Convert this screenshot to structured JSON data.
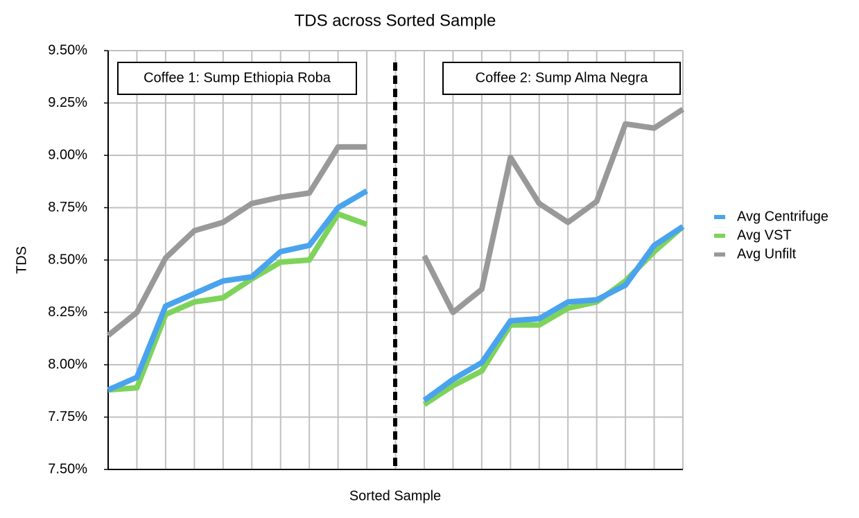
{
  "chart_data": {
    "type": "line",
    "title": "TDS across Sorted Sample",
    "x_label": "Sorted Sample",
    "y_label": "TDS",
    "categories": [
      null,
      null,
      null,
      null,
      null,
      null,
      null,
      null,
      null,
      null,
      null,
      null,
      null,
      null,
      null,
      null,
      null,
      null,
      null,
      null,
      null
    ],
    "ylim": [
      7.5,
      9.5
    ],
    "yticks": [
      {
        "value": 7.5,
        "label": "7.50%"
      },
      {
        "value": 7.75,
        "label": "7.75%"
      },
      {
        "value": 8.0,
        "label": "8.00%"
      },
      {
        "value": 8.25,
        "label": "8.25%"
      },
      {
        "value": 8.5,
        "label": "8.50%"
      },
      {
        "value": 8.75,
        "label": "8.75%"
      },
      {
        "value": 9.0,
        "label": "9.00%"
      },
      {
        "value": 9.25,
        "label": "9.25%"
      },
      {
        "value": 9.5,
        "label": "9.50%"
      }
    ],
    "grid": true,
    "legend": "right",
    "annotations": [
      "Coffee 1: Sump Ethiopia Roba",
      "Coffee 2: Sump Alma Negra"
    ],
    "series": [
      {
        "name": "Avg Centrifuge",
        "color": "#4aa3ee",
        "values": [
          7.88,
          7.94,
          8.28,
          8.34,
          8.4,
          8.42,
          8.54,
          8.57,
          8.75,
          8.83,
          null,
          7.83,
          7.93,
          8.01,
          8.21,
          8.22,
          8.3,
          8.31,
          8.38,
          8.57,
          8.66
        ]
      },
      {
        "name": "Avg VST",
        "color": "#7ed35b",
        "values": [
          7.88,
          7.89,
          8.24,
          8.3,
          8.32,
          8.41,
          8.49,
          8.5,
          8.72,
          8.67,
          null,
          7.81,
          7.9,
          7.97,
          8.19,
          8.19,
          8.27,
          8.3,
          8.4,
          8.54,
          8.66
        ]
      },
      {
        "name": "Avg Unfilt",
        "color": "#999999",
        "values": [
          8.14,
          8.25,
          8.51,
          8.64,
          8.68,
          8.77,
          8.8,
          8.82,
          9.04,
          9.04,
          null,
          8.52,
          8.25,
          8.36,
          8.99,
          8.77,
          8.68,
          8.78,
          9.15,
          9.13,
          9.22
        ]
      }
    ]
  }
}
